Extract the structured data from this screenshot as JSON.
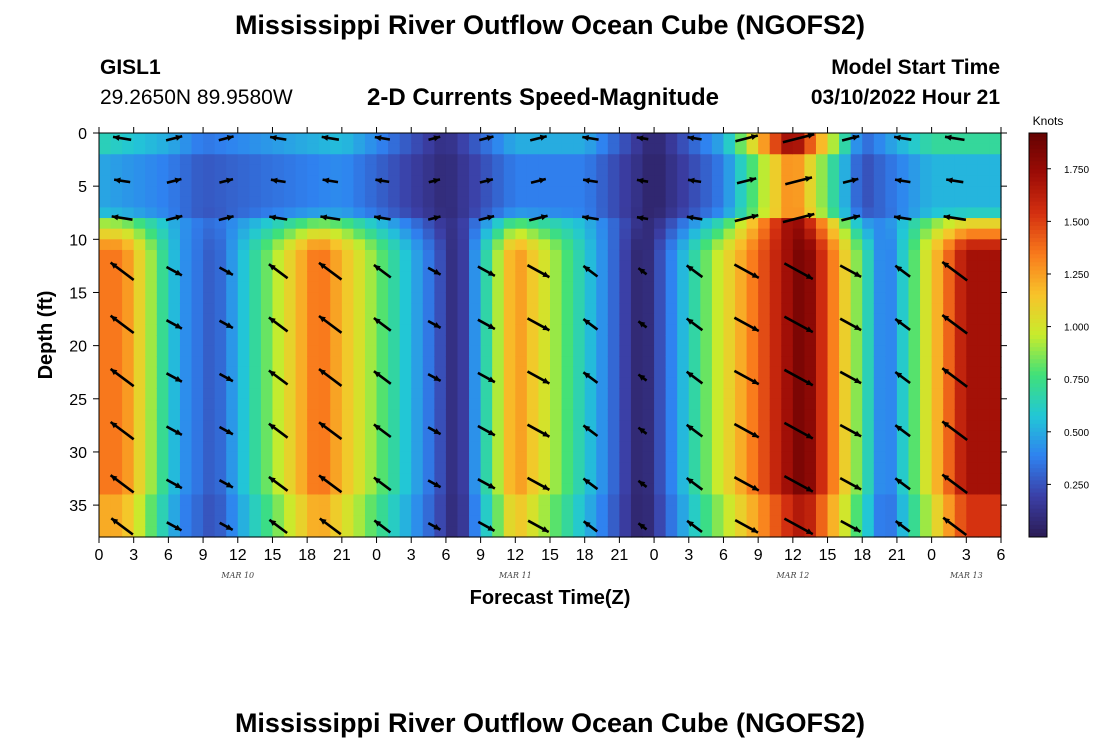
{
  "header": {
    "title": "Mississippi River Outflow Ocean Cube (NGOFS2)",
    "station": "GISL1",
    "coords": "29.2650N  89.9580W",
    "subtitle": "2-D Currents Speed-Magnitude",
    "model_start_label": "Model Start Time",
    "model_start_value": "03/10/2022 Hour 21"
  },
  "footer": {
    "title": "Mississippi River Outflow Ocean Cube (NGOFS2)"
  },
  "chart_data": {
    "type": "heatmap",
    "xlabel": "Forecast Time(Z)",
    "ylabel": "Depth (ft)",
    "x_ticks": [
      "0",
      "3",
      "6",
      "9",
      "12",
      "15",
      "18",
      "21",
      "0",
      "3",
      "6",
      "9",
      "12",
      "15",
      "18",
      "21",
      "0",
      "3",
      "6",
      "9",
      "12",
      "15",
      "18",
      "21",
      "0",
      "3",
      "6"
    ],
    "x_range_hours": [
      0,
      78
    ],
    "date_labels": [
      {
        "text": "MAR 10",
        "hour": 12
      },
      {
        "text": "MAR 11",
        "hour": 36
      },
      {
        "text": "MAR 12",
        "hour": 60
      },
      {
        "text": "MAR 13",
        "hour": 75
      }
    ],
    "y_ticks": [
      0,
      5,
      10,
      15,
      20,
      25,
      30,
      35
    ],
    "y_range_ft": [
      0,
      38
    ],
    "y_inverted": true,
    "colorbar": {
      "unit": "Knots",
      "ticks": [
        "0.250",
        "0.500",
        "0.750",
        "1.000",
        "1.250",
        "1.500",
        "1.750"
      ],
      "range": [
        0,
        1.92
      ],
      "colors": [
        "#2b1b54",
        "#3b3fa6",
        "#2f82f0",
        "#22c7d6",
        "#3fe07a",
        "#c8ec2c",
        "#f8c32a",
        "#f97a1c",
        "#d43010",
        "#9c0c06",
        "#640202"
      ]
    },
    "speed_profile": {
      "description_hours": "band speed envelope by forecast hour (knots)",
      "upper_layer": [
        {
          "hour": 0,
          "speed": 0.65
        },
        {
          "hour": 6,
          "speed": 0.5
        },
        {
          "hour": 9,
          "speed": 0.35
        },
        {
          "hour": 15,
          "speed": 0.45
        },
        {
          "hour": 21,
          "speed": 0.55
        },
        {
          "hour": 30,
          "speed": 0.1
        },
        {
          "hour": 36,
          "speed": 0.5
        },
        {
          "hour": 42,
          "speed": 0.5
        },
        {
          "hour": 48,
          "speed": 0.05
        },
        {
          "hour": 54,
          "speed": 0.5
        },
        {
          "hour": 60,
          "speed": 1.8
        },
        {
          "hour": 66,
          "speed": 0.3
        },
        {
          "hour": 72,
          "speed": 0.7
        },
        {
          "hour": 78,
          "speed": 0.7
        }
      ],
      "lower_layer": [
        {
          "hour": 2,
          "speed": 1.35
        },
        {
          "hour": 7,
          "speed": 0.45
        },
        {
          "hour": 10,
          "speed": 0.25
        },
        {
          "hour": 19,
          "speed": 1.4
        },
        {
          "hour": 29,
          "speed": 0.3
        },
        {
          "hour": 31,
          "speed": 0.05
        },
        {
          "hour": 36,
          "speed": 1.3
        },
        {
          "hour": 47,
          "speed": 0.02
        },
        {
          "hour": 53,
          "speed": 0.9
        },
        {
          "hour": 61,
          "speed": 1.9
        },
        {
          "hour": 68,
          "speed": 0.3
        },
        {
          "hour": 75,
          "speed": 1.7
        }
      ]
    }
  }
}
